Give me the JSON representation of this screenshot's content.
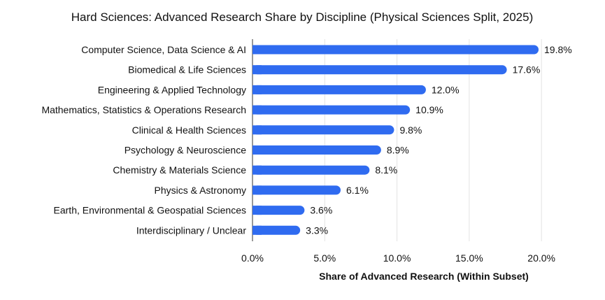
{
  "chart_data": {
    "type": "bar",
    "orientation": "horizontal",
    "title": "Hard Sciences: Advanced Research Share by Discipline (Physical Sciences Split, 2025)",
    "xlabel": "Share of Advanced Research (Within Subset)",
    "ylabel": "",
    "xlim": [
      0,
      22.8
    ],
    "xticks": [
      0,
      5,
      10,
      15,
      20
    ],
    "xtick_labels": [
      "0.0%",
      "5.0%",
      "10.0%",
      "15.0%",
      "20.0%"
    ],
    "grid": "vertical",
    "bar_color": "#2f6bf0",
    "categories": [
      "Computer Science, Data Science & AI",
      "Biomedical & Life Sciences",
      "Engineering & Applied Technology",
      "Mathematics, Statistics & Operations Research",
      "Clinical & Health Sciences",
      "Psychology & Neuroscience",
      "Chemistry & Materials Science",
      "Physics & Astronomy",
      "Earth, Environmental & Geospatial Sciences",
      "Interdisciplinary / Unclear"
    ],
    "values": [
      19.8,
      17.6,
      12.0,
      10.9,
      9.8,
      8.9,
      8.1,
      6.1,
      3.6,
      3.3
    ],
    "value_labels": [
      "19.8%",
      "17.6%",
      "12.0%",
      "10.9%",
      "9.8%",
      "8.9%",
      "8.1%",
      "6.1%",
      "3.6%",
      "3.3%"
    ]
  }
}
